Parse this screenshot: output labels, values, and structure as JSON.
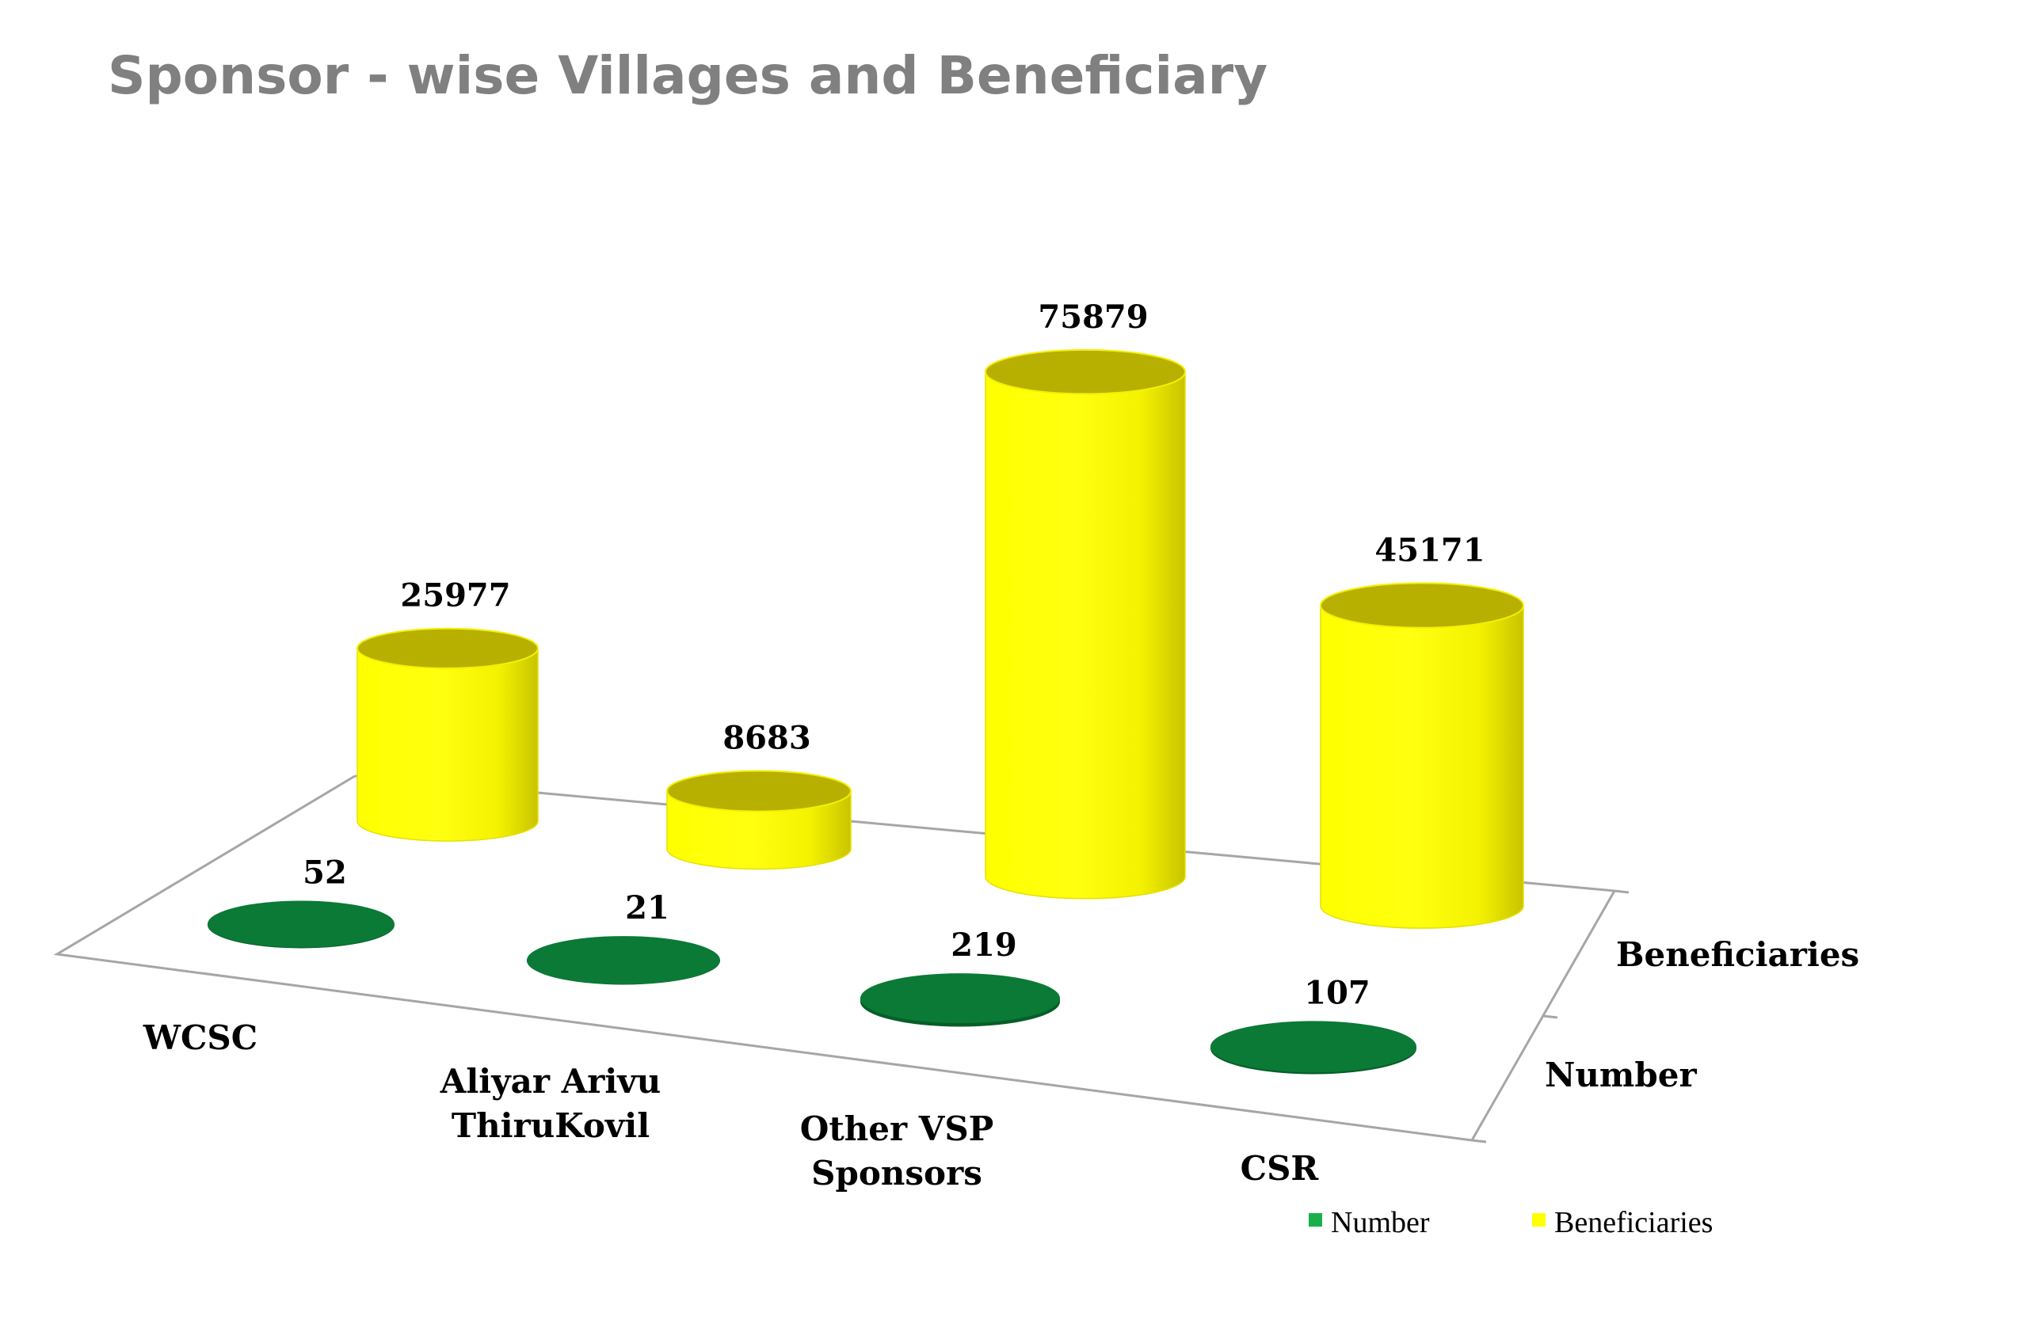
{
  "chart_data": {
    "type": "bar",
    "style": "3d-cylinder",
    "title": "Sponsor - wise Villages and Beneficiary",
    "categories": [
      [
        "WCSC"
      ],
      [
        "Aliyar Arivu",
        "ThiruKovil"
      ],
      [
        "Other VSP",
        "Sponsors"
      ],
      [
        "CSR"
      ]
    ],
    "series": [
      {
        "name": "Number",
        "values": [
          52,
          21,
          219,
          107
        ],
        "value_labels": [
          "52",
          "21",
          "219",
          "107"
        ]
      },
      {
        "name": "Beneficiaries",
        "values": [
          25977,
          8683,
          75879,
          45171
        ],
        "value_labels": [
          "25977",
          "8683",
          "75879",
          "45171"
        ]
      }
    ],
    "depth_axis_labels": [
      "Beneficiaries",
      "Number"
    ],
    "legend_position": "bottom-right",
    "colors": {
      "title": "#808080",
      "Number": "#0a7a36",
      "Number_legend": "#19b04b",
      "Beneficiaries": "#ffff00",
      "Beneficiaries_top": "#b7b000",
      "floor_line": "#a6a6a6"
    }
  }
}
